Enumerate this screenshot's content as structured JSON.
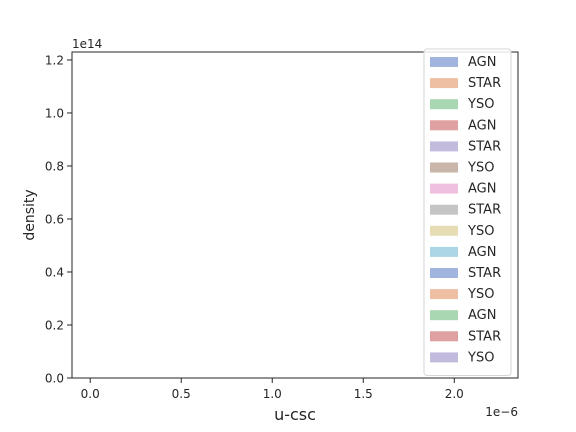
{
  "chart_data": {
    "type": "area",
    "title": "",
    "xlabel": "u-csc",
    "ylabel": "density",
    "x_ticks": [
      0.0,
      0.5,
      1.0,
      1.5,
      2.0
    ],
    "x_tick_labels": [
      "0.0",
      "0.5",
      "1.0",
      "1.5",
      "2.0"
    ],
    "x_offset_label": "1e−6",
    "xlim": [
      -0.1,
      2.35
    ],
    "y_ticks": [
      0.0,
      0.2,
      0.4,
      0.6,
      0.8,
      1.0,
      1.2
    ],
    "y_tick_labels": [
      "0.0",
      "0.2",
      "0.4",
      "0.6",
      "0.8",
      "1.0",
      "1.2"
    ],
    "y_offset_label": "1e14",
    "ylim": [
      0.0,
      1.23
    ],
    "grid": false,
    "legend_position": "right",
    "series": [
      {
        "name": "AGN",
        "color": "#a1b4dd",
        "values": []
      },
      {
        "name": "STAR",
        "color": "#eebfa2",
        "values": []
      },
      {
        "name": "YSO",
        "color": "#a8d7b1",
        "values": []
      },
      {
        "name": "AGN",
        "color": "#dea0a1",
        "values": []
      },
      {
        "name": "STAR",
        "color": "#c2bbde",
        "values": []
      },
      {
        "name": "YSO",
        "color": "#c9b5aa",
        "values": []
      },
      {
        "name": "AGN",
        "color": "#efc0e0",
        "values": []
      },
      {
        "name": "STAR",
        "color": "#c5c5c5",
        "values": []
      },
      {
        "name": "YSO",
        "color": "#e7ddb4",
        "values": []
      },
      {
        "name": "AGN",
        "color": "#acd6e6",
        "values": []
      },
      {
        "name": "STAR",
        "color": "#a1b4dd",
        "values": []
      },
      {
        "name": "YSO",
        "color": "#eebfa2",
        "values": []
      },
      {
        "name": "AGN",
        "color": "#a8d7b1",
        "values": []
      },
      {
        "name": "STAR",
        "color": "#dea0a1",
        "values": []
      },
      {
        "name": "YSO",
        "color": "#c2bbde",
        "values": []
      }
    ]
  }
}
